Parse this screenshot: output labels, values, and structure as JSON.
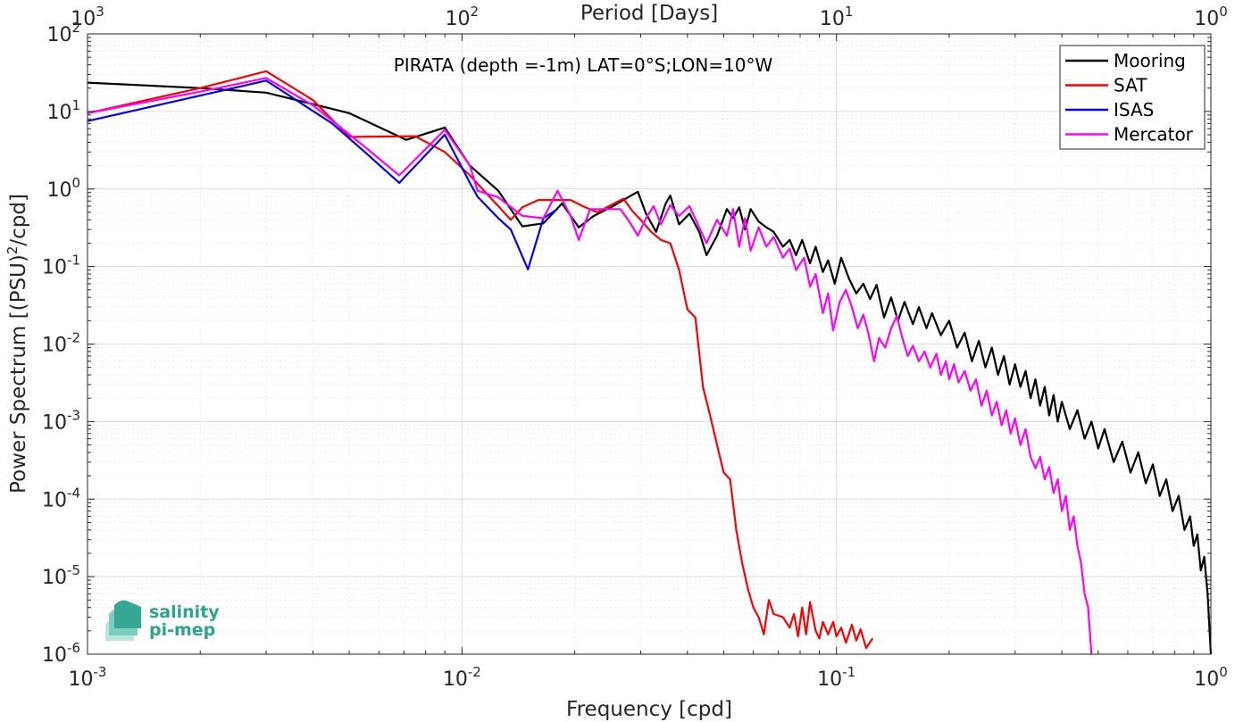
{
  "chart_data": {
    "type": "line",
    "annotation": "PIRATA (depth =-1m) LAT=0°S;LON=10°W",
    "xlabel": "Frequency [cpd]",
    "ylabel_text": "Power Spectrum [(PSU)",
    "ylabel_sup": "2",
    "ylabel_end": "/cpd]",
    "top_axis_label": "Period [Days]",
    "xscale": "log",
    "yscale": "log",
    "xlim": [
      0.001,
      1
    ],
    "ylim": [
      1e-06,
      100
    ],
    "grid": true,
    "legend_position": "top-right",
    "x_ticks": [
      {
        "value": 0.001,
        "base": "10",
        "exp": "-3"
      },
      {
        "value": 0.01,
        "base": "10",
        "exp": "-2"
      },
      {
        "value": 0.1,
        "base": "10",
        "exp": "-1"
      },
      {
        "value": 1,
        "base": "10",
        "exp": "0"
      }
    ],
    "top_ticks": [
      {
        "value": 0.001,
        "base": "10",
        "exp": "3"
      },
      {
        "value": 0.01,
        "base": "10",
        "exp": "2"
      },
      {
        "value": 0.1,
        "base": "10",
        "exp": "1"
      },
      {
        "value": 1,
        "base": "10",
        "exp": "0"
      }
    ],
    "y_ticks": [
      {
        "value": 1e-06,
        "base": "10",
        "exp": "-6"
      },
      {
        "value": 1e-05,
        "base": "10",
        "exp": "-5"
      },
      {
        "value": 0.0001,
        "base": "10",
        "exp": "-4"
      },
      {
        "value": 0.001,
        "base": "10",
        "exp": "-3"
      },
      {
        "value": 0.01,
        "base": "10",
        "exp": "-2"
      },
      {
        "value": 0.1,
        "base": "10",
        "exp": "-1"
      },
      {
        "value": 1,
        "base": "10",
        "exp": "0"
      },
      {
        "value": 10,
        "base": "10",
        "exp": "1"
      },
      {
        "value": 100,
        "base": "10",
        "exp": "2"
      }
    ],
    "series": [
      {
        "name": "Mooring",
        "color": "#000000",
        "points": [
          [
            0.001,
            23.5
          ],
          [
            0.002,
            20
          ],
          [
            0.003,
            17.5
          ],
          [
            0.005,
            9.5
          ],
          [
            0.0071,
            4.3
          ],
          [
            0.009,
            6.2
          ],
          [
            0.0105,
            2
          ],
          [
            0.0125,
            0.95
          ],
          [
            0.0145,
            0.33
          ],
          [
            0.0165,
            0.36
          ],
          [
            0.0185,
            0.65
          ],
          [
            0.0205,
            0.32
          ],
          [
            0.0225,
            0.45
          ],
          [
            0.025,
            0.58
          ],
          [
            0.028,
            0.8
          ],
          [
            0.0295,
            0.92
          ],
          [
            0.031,
            0.48
          ],
          [
            0.033,
            0.28
          ],
          [
            0.035,
            0.65
          ],
          [
            0.036,
            0.82
          ],
          [
            0.038,
            0.35
          ],
          [
            0.0405,
            0.48
          ],
          [
            0.043,
            0.28
          ],
          [
            0.045,
            0.14
          ],
          [
            0.048,
            0.25
          ],
          [
            0.051,
            0.55
          ],
          [
            0.053,
            0.42
          ],
          [
            0.055,
            0.58
          ],
          [
            0.057,
            0.3
          ],
          [
            0.059,
            0.55
          ],
          [
            0.062,
            0.38
          ],
          [
            0.065,
            0.32
          ],
          [
            0.068,
            0.28
          ],
          [
            0.072,
            0.18
          ],
          [
            0.075,
            0.22
          ],
          [
            0.078,
            0.14
          ],
          [
            0.081,
            0.22
          ],
          [
            0.085,
            0.11
          ],
          [
            0.088,
            0.18
          ],
          [
            0.092,
            0.085
          ],
          [
            0.095,
            0.12
          ],
          [
            0.099,
            0.06
          ],
          [
            0.103,
            0.13
          ],
          [
            0.108,
            0.07
          ],
          [
            0.113,
            0.045
          ],
          [
            0.118,
            0.06
          ],
          [
            0.123,
            0.038
          ],
          [
            0.128,
            0.058
          ],
          [
            0.134,
            0.022
          ],
          [
            0.14,
            0.04
          ],
          [
            0.146,
            0.02
          ],
          [
            0.152,
            0.035
          ],
          [
            0.16,
            0.018
          ],
          [
            0.166,
            0.03
          ],
          [
            0.174,
            0.016
          ],
          [
            0.18,
            0.025
          ],
          [
            0.19,
            0.013
          ],
          [
            0.2,
            0.02
          ],
          [
            0.21,
            0.009
          ],
          [
            0.22,
            0.014
          ],
          [
            0.23,
            0.006
          ],
          [
            0.24,
            0.011
          ],
          [
            0.25,
            0.005
          ],
          [
            0.26,
            0.009
          ],
          [
            0.27,
            0.004
          ],
          [
            0.28,
            0.007
          ],
          [
            0.29,
            0.003
          ],
          [
            0.3,
            0.0055
          ],
          [
            0.31,
            0.0028
          ],
          [
            0.32,
            0.0045
          ],
          [
            0.33,
            0.002
          ],
          [
            0.34,
            0.0035
          ],
          [
            0.35,
            0.0016
          ],
          [
            0.36,
            0.0028
          ],
          [
            0.37,
            0.0012
          ],
          [
            0.38,
            0.0022
          ],
          [
            0.39,
            0.001
          ],
          [
            0.4,
            0.0018
          ],
          [
            0.42,
            0.0008
          ],
          [
            0.44,
            0.0014
          ],
          [
            0.46,
            0.0006
          ],
          [
            0.48,
            0.001
          ],
          [
            0.5,
            0.00045
          ],
          [
            0.52,
            0.0008
          ],
          [
            0.55,
            0.0003
          ],
          [
            0.58,
            0.00055
          ],
          [
            0.61,
            0.00022
          ],
          [
            0.64,
            0.0004
          ],
          [
            0.67,
            0.00016
          ],
          [
            0.7,
            0.00028
          ],
          [
            0.73,
            0.00011
          ],
          [
            0.76,
            0.00018
          ],
          [
            0.79,
            7e-05
          ],
          [
            0.82,
            0.00011
          ],
          [
            0.85,
            4e-05
          ],
          [
            0.88,
            6e-05
          ],
          [
            0.9,
            2.5e-05
          ],
          [
            0.92,
            3.5e-05
          ],
          [
            0.94,
            1.2e-05
          ],
          [
            0.96,
            1.8e-05
          ],
          [
            0.98,
            6e-06
          ],
          [
            1.0,
            1e-06
          ]
        ]
      },
      {
        "name": "SAT",
        "color": "#ff0000",
        "points": [
          [
            0.001,
            9.5
          ],
          [
            0.002,
            20
          ],
          [
            0.003,
            33
          ],
          [
            0.004,
            14
          ],
          [
            0.005,
            4.7
          ],
          [
            0.0075,
            4.8
          ],
          [
            0.009,
            3
          ],
          [
            0.0105,
            1.5
          ],
          [
            0.0125,
            0.6
          ],
          [
            0.0135,
            0.4
          ],
          [
            0.0145,
            0.58
          ],
          [
            0.016,
            0.72
          ],
          [
            0.0175,
            0.72
          ],
          [
            0.0195,
            0.72
          ],
          [
            0.021,
            0.6
          ],
          [
            0.023,
            0.5
          ],
          [
            0.025,
            0.62
          ],
          [
            0.027,
            0.75
          ],
          [
            0.0285,
            0.52
          ],
          [
            0.03,
            0.4
          ],
          [
            0.032,
            0.28
          ],
          [
            0.034,
            0.22
          ],
          [
            0.036,
            0.2
          ],
          [
            0.038,
            0.09
          ],
          [
            0.04,
            0.028
          ],
          [
            0.042,
            0.022
          ],
          [
            0.044,
            0.0028
          ],
          [
            0.046,
            0.0012
          ],
          [
            0.048,
            0.0005
          ],
          [
            0.05,
            0.00022
          ],
          [
            0.052,
            0.00018
          ],
          [
            0.054,
            4e-05
          ],
          [
            0.056,
            1.5e-05
          ],
          [
            0.058,
            7e-06
          ],
          [
            0.06,
            4e-06
          ],
          [
            0.062,
            3e-06
          ],
          [
            0.064,
            1.8e-06
          ],
          [
            0.066,
            5e-06
          ],
          [
            0.068,
            3.3e-06
          ],
          [
            0.072,
            3e-06
          ],
          [
            0.075,
            2.2e-06
          ],
          [
            0.077,
            3.3e-06
          ],
          [
            0.079,
            1.7e-06
          ],
          [
            0.081,
            4e-06
          ],
          [
            0.083,
            1.8e-06
          ],
          [
            0.085,
            4.7e-06
          ],
          [
            0.088,
            2e-06
          ],
          [
            0.09,
            1.6e-06
          ],
          [
            0.092,
            2.6e-06
          ],
          [
            0.095,
            1.8e-06
          ],
          [
            0.098,
            2.6e-06
          ],
          [
            0.1,
            1.7e-06
          ],
          [
            0.103,
            2.2e-06
          ],
          [
            0.106,
            1.4e-06
          ],
          [
            0.11,
            2.4e-06
          ],
          [
            0.113,
            1.5e-06
          ],
          [
            0.116,
            2.1e-06
          ],
          [
            0.12,
            1.2e-06
          ],
          [
            0.125,
            1.6e-06
          ]
        ]
      },
      {
        "name": "ISAS",
        "color": "#0000ff",
        "points": [
          [
            0.001,
            7.5
          ],
          [
            0.002,
            16
          ],
          [
            0.003,
            25
          ],
          [
            0.0045,
            7
          ],
          [
            0.0055,
            3
          ],
          [
            0.0068,
            1.2
          ],
          [
            0.009,
            5
          ],
          [
            0.0105,
            1.2
          ],
          [
            0.011,
            0.8
          ],
          [
            0.0125,
            0.42
          ],
          [
            0.0135,
            0.3
          ],
          [
            0.015,
            0.092
          ],
          [
            0.0165,
            0.42
          ],
          [
            0.018,
            0.55
          ]
        ]
      },
      {
        "name": "Mercator",
        "color": "#ff00ff",
        "points": [
          [
            0.001,
            9.5
          ],
          [
            0.002,
            18
          ],
          [
            0.003,
            27
          ],
          [
            0.004,
            12
          ],
          [
            0.0055,
            3.5
          ],
          [
            0.0068,
            1.5
          ],
          [
            0.009,
            5.8
          ],
          [
            0.0105,
            2
          ],
          [
            0.011,
            0.95
          ],
          [
            0.0125,
            0.78
          ],
          [
            0.0145,
            0.45
          ],
          [
            0.0165,
            0.42
          ],
          [
            0.018,
            0.95
          ],
          [
            0.0195,
            0.45
          ],
          [
            0.0205,
            0.22
          ],
          [
            0.022,
            0.55
          ],
          [
            0.0245,
            0.55
          ],
          [
            0.0265,
            0.55
          ],
          [
            0.028,
            0.38
          ],
          [
            0.0295,
            0.25
          ],
          [
            0.031,
            0.42
          ],
          [
            0.0325,
            0.6
          ],
          [
            0.034,
            0.35
          ],
          [
            0.036,
            0.62
          ],
          [
            0.038,
            0.45
          ],
          [
            0.0405,
            0.6
          ],
          [
            0.043,
            0.32
          ],
          [
            0.045,
            0.2
          ],
          [
            0.048,
            0.4
          ],
          [
            0.051,
            0.25
          ],
          [
            0.053,
            0.55
          ],
          [
            0.055,
            0.18
          ],
          [
            0.057,
            0.42
          ],
          [
            0.059,
            0.16
          ],
          [
            0.062,
            0.32
          ],
          [
            0.065,
            0.18
          ],
          [
            0.068,
            0.24
          ],
          [
            0.072,
            0.13
          ],
          [
            0.075,
            0.17
          ],
          [
            0.078,
            0.09
          ],
          [
            0.082,
            0.13
          ],
          [
            0.085,
            0.055
          ],
          [
            0.088,
            0.08
          ],
          [
            0.092,
            0.025
          ],
          [
            0.095,
            0.045
          ],
          [
            0.098,
            0.015
          ],
          [
            0.102,
            0.035
          ],
          [
            0.106,
            0.05
          ],
          [
            0.11,
            0.03
          ],
          [
            0.114,
            0.016
          ],
          [
            0.118,
            0.024
          ],
          [
            0.122,
            0.013
          ],
          [
            0.126,
            0.006
          ],
          [
            0.13,
            0.012
          ],
          [
            0.135,
            0.009
          ],
          [
            0.14,
            0.016
          ],
          [
            0.145,
            0.023
          ],
          [
            0.15,
            0.012
          ],
          [
            0.155,
            0.007
          ],
          [
            0.16,
            0.0095
          ],
          [
            0.166,
            0.006
          ],
          [
            0.172,
            0.008
          ],
          [
            0.178,
            0.005
          ],
          [
            0.185,
            0.0075
          ],
          [
            0.19,
            0.004
          ],
          [
            0.196,
            0.006
          ],
          [
            0.2,
            0.0035
          ],
          [
            0.206,
            0.0055
          ],
          [
            0.212,
            0.0032
          ],
          [
            0.22,
            0.0045
          ],
          [
            0.228,
            0.0025
          ],
          [
            0.236,
            0.0035
          ],
          [
            0.244,
            0.0016
          ],
          [
            0.252,
            0.0025
          ],
          [
            0.26,
            0.0012
          ],
          [
            0.268,
            0.0018
          ],
          [
            0.276,
            0.0009
          ],
          [
            0.284,
            0.0014
          ],
          [
            0.292,
            0.0007
          ],
          [
            0.3,
            0.0011
          ],
          [
            0.31,
            0.0005
          ],
          [
            0.32,
            0.0008
          ],
          [
            0.33,
            0.00035
          ],
          [
            0.34,
            0.00025
          ],
          [
            0.35,
            0.00035
          ],
          [
            0.36,
            0.00018
          ],
          [
            0.37,
            0.00026
          ],
          [
            0.38,
            0.00012
          ],
          [
            0.39,
            0.00018
          ],
          [
            0.4,
            7e-05
          ],
          [
            0.41,
            0.00011
          ],
          [
            0.42,
            4e-05
          ],
          [
            0.43,
            6e-05
          ],
          [
            0.44,
            2.5e-05
          ],
          [
            0.45,
            1.5e-05
          ],
          [
            0.46,
            6e-06
          ],
          [
            0.47,
            4e-06
          ],
          [
            0.48,
            1e-06
          ]
        ]
      }
    ]
  },
  "logo": {
    "line1": "salinity",
    "line2": "pi-mep"
  }
}
